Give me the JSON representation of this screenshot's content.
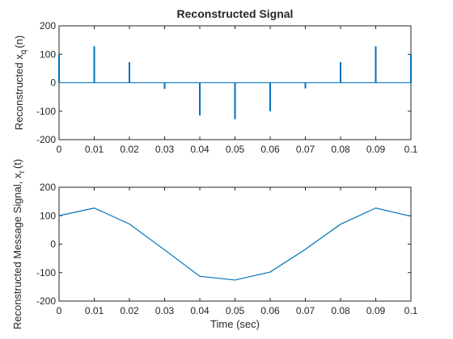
{
  "colors": {
    "series": "#0072BD",
    "axes": "#262626",
    "background": "#ffffff"
  },
  "chart_data": [
    {
      "type": "stem",
      "title": "Reconstructed Signal",
      "xlabel": "",
      "ylabel": "Reconstructed x",
      "ylabel_sub": "q",
      "ylabel_suffix": "(n)",
      "xlim": [
        0,
        0.1
      ],
      "ylim": [
        -200,
        200
      ],
      "xticks": [
        0,
        0.01,
        0.02,
        0.03,
        0.04,
        0.05,
        0.06,
        0.07,
        0.08,
        0.09,
        0.1
      ],
      "xtick_labels": [
        "0",
        "0.01",
        "0.02",
        "0.03",
        "0.04",
        "0.05",
        "0.06",
        "0.07",
        "0.08",
        "0.09",
        "0.1"
      ],
      "yticks": [
        -200,
        -100,
        0,
        100,
        200
      ],
      "ytick_labels": [
        "-200",
        "-100",
        "0",
        "100",
        "200"
      ],
      "grid": false,
      "x": [
        0,
        0.01,
        0.02,
        0.03,
        0.04,
        0.05,
        0.06,
        0.07,
        0.08,
        0.09,
        0.1
      ],
      "values": [
        100,
        128,
        72,
        -22,
        -115,
        -128,
        -100,
        -20,
        72,
        128,
        100
      ]
    },
    {
      "type": "line",
      "title": "",
      "xlabel": "Time (sec)",
      "ylabel": "Reconstructed Message Signal, x",
      "ylabel_sub": "r",
      "ylabel_suffix": "(t)",
      "xlim": [
        0,
        0.1
      ],
      "ylim": [
        -200,
        200
      ],
      "xticks": [
        0,
        0.01,
        0.02,
        0.03,
        0.04,
        0.05,
        0.06,
        0.07,
        0.08,
        0.09,
        0.1
      ],
      "xtick_labels": [
        "0",
        "0.01",
        "0.02",
        "0.03",
        "0.04",
        "0.05",
        "0.06",
        "0.07",
        "0.08",
        "0.09",
        "0.1"
      ],
      "yticks": [
        -200,
        -100,
        0,
        100,
        200
      ],
      "ytick_labels": [
        "-200",
        "-100",
        "0",
        "100",
        "200"
      ],
      "grid": false,
      "x": [
        0,
        0.01,
        0.02,
        0.03,
        0.04,
        0.05,
        0.06,
        0.07,
        0.08,
        0.09,
        0.1
      ],
      "values": [
        100,
        127,
        71,
        -20,
        -113,
        -126,
        -98,
        -18,
        70,
        127,
        98
      ]
    }
  ]
}
